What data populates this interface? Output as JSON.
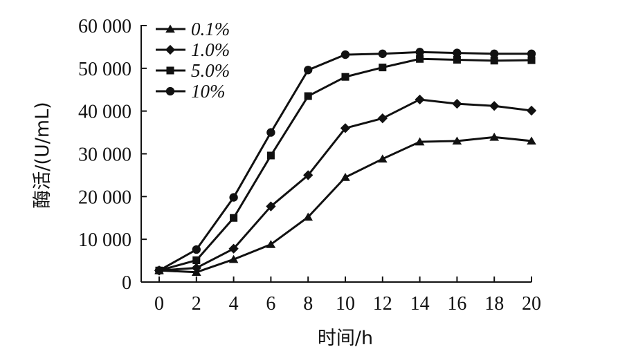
{
  "chart_data": {
    "type": "line",
    "xlabel": "时间/h",
    "ylabel": "酶活/(U/mL)",
    "xlim": [
      0,
      20
    ],
    "ylim": [
      0,
      60000
    ],
    "x_ticks": [
      0,
      2,
      4,
      6,
      8,
      10,
      12,
      14,
      16,
      18,
      20
    ],
    "x_tick_labels": [
      "0",
      "2",
      "4",
      "6",
      "8",
      "10",
      "12",
      "14",
      "16",
      "18",
      "20"
    ],
    "y_ticks": [
      0,
      10000,
      20000,
      30000,
      40000,
      50000,
      60000
    ],
    "y_tick_labels": [
      "0",
      "10 000",
      "20 000",
      "30 000",
      "40 000",
      "50 000",
      "60 000"
    ],
    "grid": false,
    "legend_position": "top-left",
    "x": [
      0,
      2,
      4,
      6,
      8,
      10,
      12,
      14,
      16,
      18,
      20
    ],
    "series": [
      {
        "name": "0.1%",
        "marker": "triangle",
        "values": [
          2700,
          2300,
          5300,
          8800,
          15200,
          24500,
          28800,
          32800,
          33000,
          33900,
          33000
        ]
      },
      {
        "name": "1.0%",
        "marker": "diamond",
        "values": [
          2700,
          3300,
          7800,
          17700,
          25000,
          36000,
          38300,
          42700,
          41700,
          41200,
          40100
        ]
      },
      {
        "name": "5.0%",
        "marker": "square",
        "values": [
          2700,
          5100,
          15000,
          29600,
          43500,
          48000,
          50200,
          52200,
          52000,
          51800,
          51900
        ]
      },
      {
        "name": "10%",
        "marker": "circle",
        "values": [
          2700,
          7600,
          19800,
          35000,
          49600,
          53200,
          53400,
          53800,
          53600,
          53400,
          53400
        ]
      }
    ]
  }
}
